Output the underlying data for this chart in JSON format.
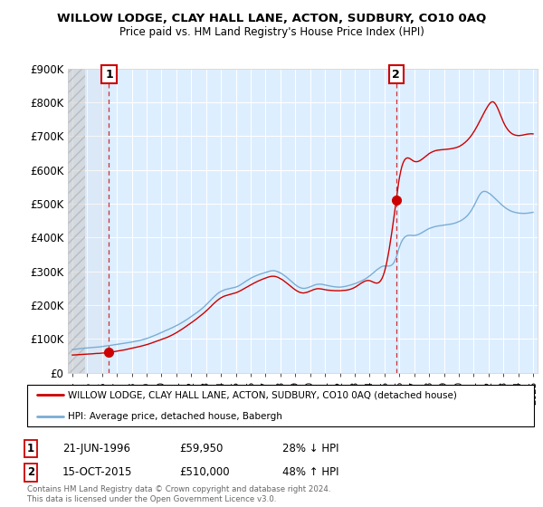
{
  "title": "WILLOW LODGE, CLAY HALL LANE, ACTON, SUDBURY, CO10 0AQ",
  "subtitle": "Price paid vs. HM Land Registry's House Price Index (HPI)",
  "ylim": [
    0,
    900000
  ],
  "yticks": [
    0,
    100000,
    200000,
    300000,
    400000,
    500000,
    600000,
    700000,
    800000,
    900000
  ],
  "ytick_labels": [
    "£0",
    "£100K",
    "£200K",
    "£300K",
    "£400K",
    "£500K",
    "£600K",
    "£700K",
    "£800K",
    "£900K"
  ],
  "xlim_start": 1993.7,
  "xlim_end": 2025.3,
  "purchase1_x": 1996.47,
  "purchase1_y": 59950,
  "purchase1_label": "1",
  "purchase1_date": "21-JUN-1996",
  "purchase1_price": "£59,950",
  "purchase1_hpi": "28% ↓ HPI",
  "purchase2_x": 2015.79,
  "purchase2_y": 510000,
  "purchase2_label": "2",
  "purchase2_date": "15-OCT-2015",
  "purchase2_price": "£510,000",
  "purchase2_hpi": "48% ↑ HPI",
  "house_color": "#cc0000",
  "hpi_color": "#7aadd4",
  "vline_color": "#cc0000",
  "bg_color": "#ddeeff",
  "hatch_color": "#bbbbbb",
  "legend_house": "WILLOW LODGE, CLAY HALL LANE, ACTON, SUDBURY, CO10 0AQ (detached house)",
  "legend_hpi": "HPI: Average price, detached house, Babergh",
  "footer": "Contains HM Land Registry data © Crown copyright and database right 2024.\nThis data is licensed under the Open Government Licence v3.0."
}
